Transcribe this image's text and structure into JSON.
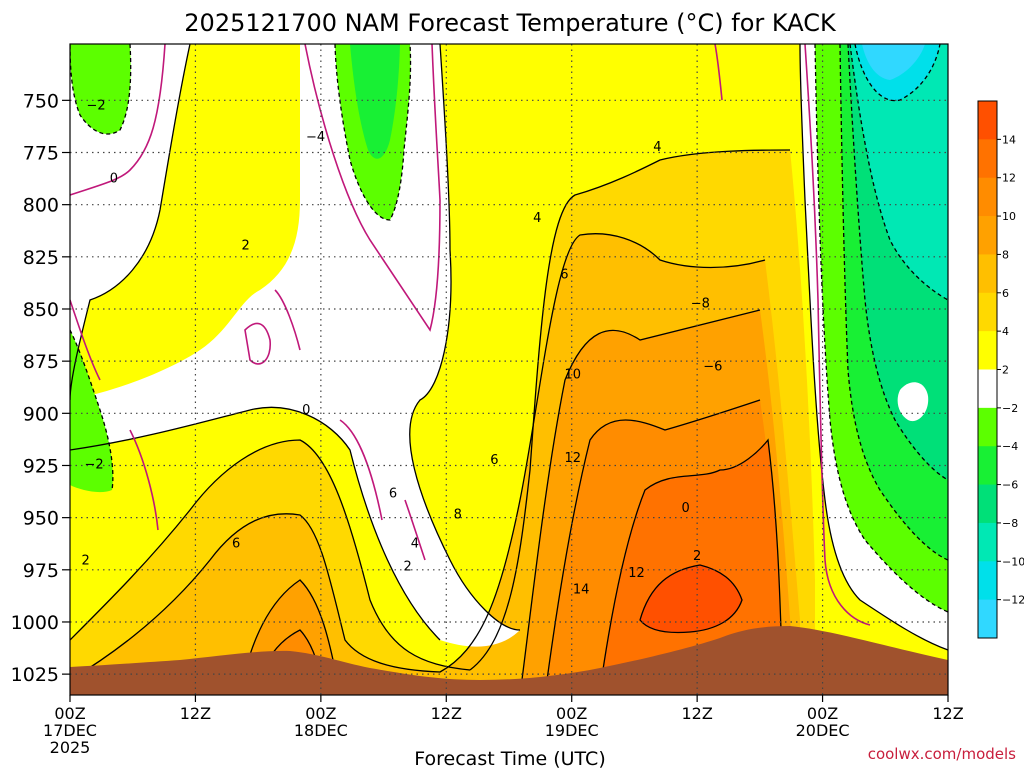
{
  "chart_data": {
    "type": "heatmap",
    "title": "2025121700 NAM Forecast Temperature (°C) for KACK",
    "xlabel": "Forecast Time (UTC)",
    "ylabel": "",
    "credit": "coolwx.com/models",
    "y_axis": {
      "scale": "pressure (inverted, hPa)",
      "range": [
        1035,
        723
      ],
      "ticks": [
        "750",
        "775",
        "800",
        "825",
        "850",
        "875",
        "900",
        "925",
        "950",
        "975",
        "1000",
        "1025"
      ]
    },
    "x_axis": {
      "range_hours": [
        0,
        84
      ],
      "ticks": [
        {
          "hour": 0,
          "line1": "00Z",
          "line2": "17DEC",
          "line3": "2025"
        },
        {
          "hour": 12,
          "line1": "12Z",
          "line2": "",
          "line3": ""
        },
        {
          "hour": 24,
          "line1": "00Z",
          "line2": "18DEC",
          "line3": ""
        },
        {
          "hour": 36,
          "line1": "12Z",
          "line2": "",
          "line3": ""
        },
        {
          "hour": 48,
          "line1": "00Z",
          "line2": "19DEC",
          "line3": ""
        },
        {
          "hour": 60,
          "line1": "12Z",
          "line2": "",
          "line3": ""
        },
        {
          "hour": 72,
          "line1": "00Z",
          "line2": "20DEC",
          "line3": ""
        },
        {
          "hour": 84,
          "line1": "12Z",
          "line2": "",
          "line3": ""
        }
      ]
    },
    "grid": true,
    "colorbar": {
      "placement": "right",
      "labels": [
        "14",
        "12",
        "10",
        "8",
        "6",
        "4",
        "2",
        "−2",
        "−4",
        "−6",
        "−8",
        "−10",
        "−12"
      ],
      "colors": [
        "#ff5000",
        "#ff7200",
        "#ff8c00",
        "#ffa100",
        "#ffbf00",
        "#ffd900",
        "#ffff00",
        "#ffffff",
        "#5cff00",
        "#18f034",
        "#00e078",
        "#00e8b4",
        "#00e0ea",
        "#30d8ff"
      ]
    },
    "contour_labels": [
      {
        "text": "−2",
        "hour": 2.5,
        "pressure": 752
      },
      {
        "text": "0",
        "hour": 4.2,
        "pressure": 787
      },
      {
        "text": "−4",
        "hour": 23.5,
        "pressure": 767
      },
      {
        "text": "2",
        "hour": 16.8,
        "pressure": 819
      },
      {
        "text": "0",
        "hour": 22.6,
        "pressure": 898
      },
      {
        "text": "−2",
        "hour": 2.3,
        "pressure": 924
      },
      {
        "text": "2",
        "hour": 1.5,
        "pressure": 970
      },
      {
        "text": "6",
        "hour": 15.9,
        "pressure": 962
      },
      {
        "text": "6",
        "hour": 30.9,
        "pressure": 938
      },
      {
        "text": "4",
        "hour": 33.0,
        "pressure": 962
      },
      {
        "text": "2",
        "hour": 32.3,
        "pressure": 973
      },
      {
        "text": "8",
        "hour": 37.1,
        "pressure": 948
      },
      {
        "text": "6",
        "hour": 40.6,
        "pressure": 922
      },
      {
        "text": "4",
        "hour": 44.7,
        "pressure": 806
      },
      {
        "text": "6",
        "hour": 47.3,
        "pressure": 833
      },
      {
        "text": "10",
        "hour": 48.1,
        "pressure": 881
      },
      {
        "text": "12",
        "hour": 48.1,
        "pressure": 921
      },
      {
        "text": "14",
        "hour": 48.9,
        "pressure": 984
      },
      {
        "text": "12",
        "hour": 54.2,
        "pressure": 976
      },
      {
        "text": "4",
        "hour": 56.2,
        "pressure": 772
      },
      {
        "text": "−8",
        "hour": 60.3,
        "pressure": 847
      },
      {
        "text": "−6",
        "hour": 61.5,
        "pressure": 877
      },
      {
        "text": "0",
        "hour": 58.9,
        "pressure": 945
      },
      {
        "text": "2",
        "hour": 60.0,
        "pressure": 968
      }
    ]
  }
}
